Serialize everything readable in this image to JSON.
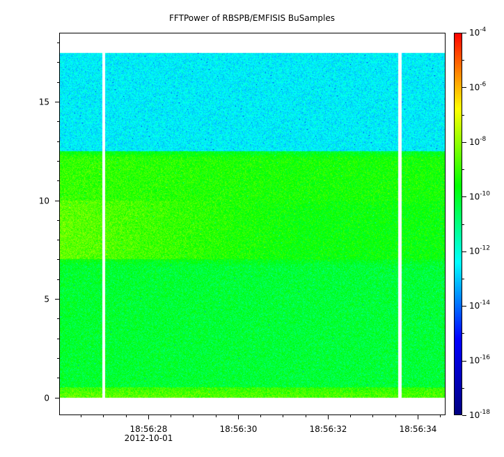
{
  "chart_data": {
    "type": "heatmap",
    "title": "FFTPower of RBSPB/EMFISIS  BuSamples",
    "xlabel": "",
    "ylabel": "",
    "x_axis": {
      "range": [
        "18:56:26.02",
        "18:56:34.62"
      ],
      "major_ticks": [
        {
          "time": "18:56:28",
          "label": "18:56:28",
          "sublabel": "2012-10-01"
        },
        {
          "time": "18:56:30",
          "label": "18:56:30",
          "sublabel": ""
        },
        {
          "time": "18:56:32",
          "label": "18:56:32",
          "sublabel": ""
        },
        {
          "time": "18:56:34",
          "label": "18:56:34",
          "sublabel": ""
        }
      ],
      "minor_ticks": [
        "18:56:26.5",
        "18:56:27",
        "18:56:27.5",
        "18:56:28.5",
        "18:56:29",
        "18:56:29.5",
        "18:56:30.5",
        "18:56:31",
        "18:56:31.5",
        "18:56:32.5",
        "18:56:33",
        "18:56:33.5",
        "18:56:34.5"
      ]
    },
    "y_axis": {
      "range": [
        -0.9,
        18.5
      ],
      "ticks": [
        0,
        5,
        10,
        15
      ],
      "tick_labels": [
        "0",
        "5",
        "10",
        "15"
      ],
      "minor_step": 1
    },
    "data_extent": {
      "y": [
        0,
        17.5
      ]
    },
    "gaps_in_data": [
      "18:56:27.0",
      "18:56:33.6"
    ],
    "colorbar": {
      "scale": "log",
      "range": [
        1e-18,
        0.0001
      ],
      "tick_exponents": [
        -18,
        -16,
        -14,
        -12,
        -10,
        -8,
        -6,
        -4
      ],
      "tick_labels": [
        "10-18",
        "10-16",
        "10-14",
        "10-12",
        "10-10",
        "10-8",
        "10-6",
        "10-4"
      ],
      "colormap": [
        "#000080",
        "#0000ff",
        "#00ffff",
        "#00ff00",
        "#ffff00",
        "#ff0000"
      ]
    },
    "power_profile_log10": [
      {
        "freq_band": [
          0,
          0.5
        ],
        "time_early": -8.6,
        "time_late": -8.8
      },
      {
        "freq_band": [
          0.5,
          7
        ],
        "time_early": -10.1,
        "time_late": -10.2
      },
      {
        "freq_band": [
          7,
          10
        ],
        "time_early": -8.5,
        "time_late": -9.6
      },
      {
        "freq_band": [
          10,
          12.5
        ],
        "time_early": -9.0,
        "time_late": -9.4
      },
      {
        "freq_band": [
          12.5,
          17.5
        ],
        "time_early": -12.5,
        "time_late": -12.5
      }
    ],
    "grid": false,
    "legend": "none"
  }
}
